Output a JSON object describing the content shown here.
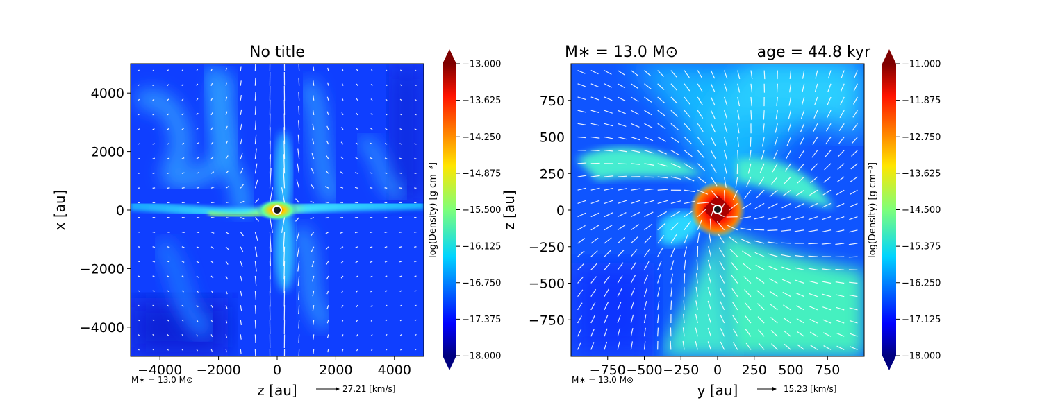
{
  "chart_data": [
    {
      "type": "heatmap",
      "title": "No title",
      "xlabel": "z [au]",
      "ylabel": "x [au]",
      "xlim": [
        -5000,
        5000
      ],
      "ylim": [
        -5000,
        5000
      ],
      "xticks": [
        "−4000",
        "−2000",
        "0",
        "2000",
        "4000"
      ],
      "yticks": [
        "4000",
        "2000",
        "0",
        "−2000",
        "−4000"
      ],
      "colorbar": {
        "label": "log(Density) [g cm⁻³]",
        "min": -18.0,
        "max": -13.0,
        "ticks": [
          "−13.000",
          "−13.625",
          "−14.250",
          "−14.875",
          "−15.500",
          "−16.125",
          "−16.750",
          "−17.375",
          "−18.000"
        ]
      },
      "footer_mass": "M∗ = 13.0 M⊙",
      "arrow_key": "27.21 [km/s]"
    },
    {
      "type": "heatmap",
      "title_left": "M∗ = 13.0 M⊙",
      "title_right": "age = 44.8 kyr",
      "xlabel": "y [au]",
      "ylabel": "z [au]",
      "xlim": [
        -1000,
        1000
      ],
      "ylim": [
        -1000,
        1000
      ],
      "xticks": [
        "−750",
        "−500",
        "−250",
        "0",
        "250",
        "500",
        "750"
      ],
      "yticks": [
        "750",
        "500",
        "250",
        "0",
        "−250",
        "−500",
        "−750"
      ],
      "colorbar": {
        "label": "log(Density) [g cm⁻³]",
        "min": -18.0,
        "max": -11.0,
        "ticks": [
          "−11.000",
          "−11.875",
          "−12.750",
          "−13.625",
          "−14.500",
          "−15.375",
          "−16.250",
          "−17.125",
          "−18.000"
        ]
      },
      "footer_mass": "M∗ = 13.0 M⊙",
      "arrow_key": "15.23 [km/s]"
    }
  ]
}
